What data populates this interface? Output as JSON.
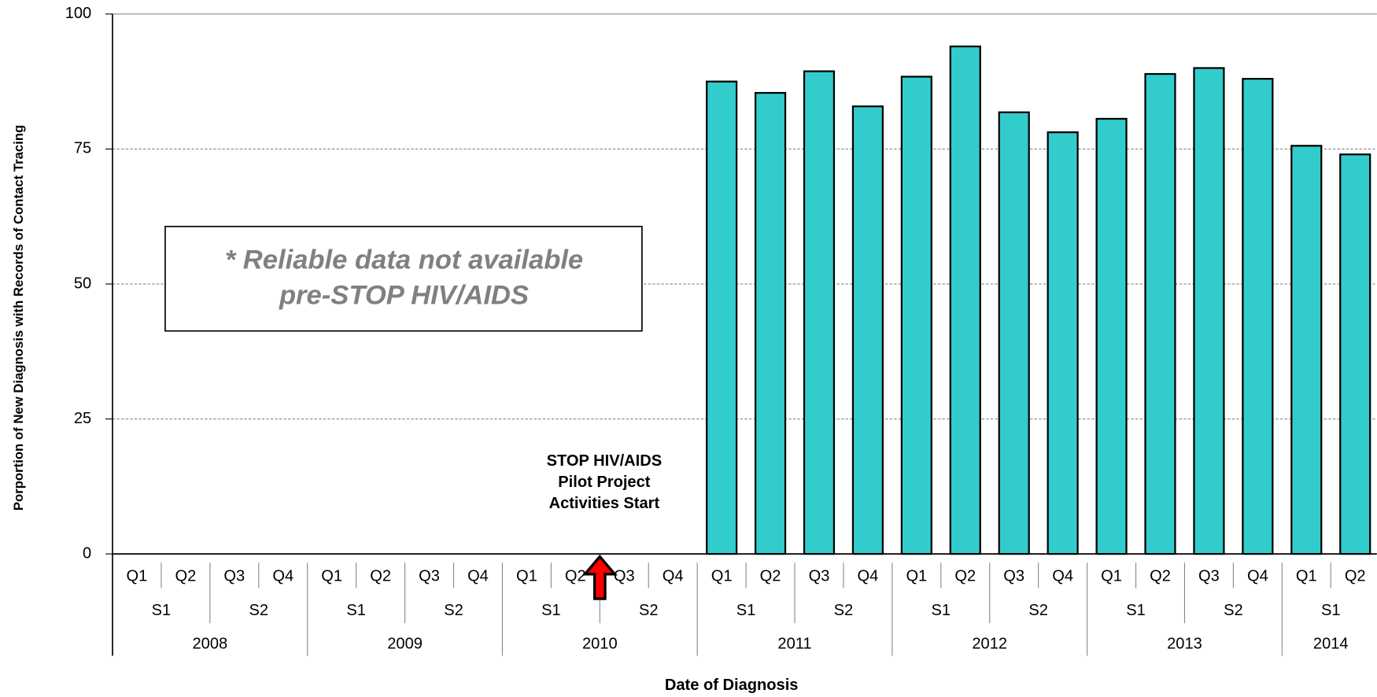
{
  "chart_data": {
    "type": "bar",
    "y_label": "Porportion of New Diagnosis with Records of Contact Tracing",
    "x_label": "Date of Diagnosis",
    "categories": [
      "Q1",
      "Q2",
      "Q3",
      "Q4",
      "Q1",
      "Q2",
      "Q3",
      "Q4",
      "Q1",
      "Q2",
      "Q3",
      "Q4",
      "Q1",
      "Q2",
      "Q3",
      "Q4",
      "Q1",
      "Q2",
      "Q3",
      "Q4",
      "Q1",
      "Q2",
      "Q3",
      "Q4",
      "Q1",
      "Q2"
    ],
    "semesters": [
      "S1",
      "S2",
      "S1",
      "S2",
      "S1",
      "S2",
      "S1",
      "S2",
      "S1",
      "S2",
      "S1",
      "S2",
      "S1"
    ],
    "years": [
      "2008",
      "2009",
      "2010",
      "2011",
      "2012",
      "2013",
      "2014"
    ],
    "values": [
      null,
      null,
      null,
      null,
      null,
      null,
      null,
      null,
      null,
      null,
      null,
      null,
      87.5,
      85.4,
      89.4,
      82.9,
      88.4,
      94,
      81.8,
      78.1,
      80.6,
      88.9,
      90,
      88,
      75.6,
      74
    ],
    "color": "#33cccc",
    "ylim": [
      0,
      100
    ],
    "yticks": [
      0,
      25,
      50,
      75,
      100
    ],
    "grid": true,
    "annotations": {
      "note": [
        "* Reliable data not available",
        "pre-STOP HIV/AIDS"
      ],
      "event": [
        "STOP HIV/AIDS",
        "Pilot Project",
        "Activities Start"
      ]
    }
  }
}
